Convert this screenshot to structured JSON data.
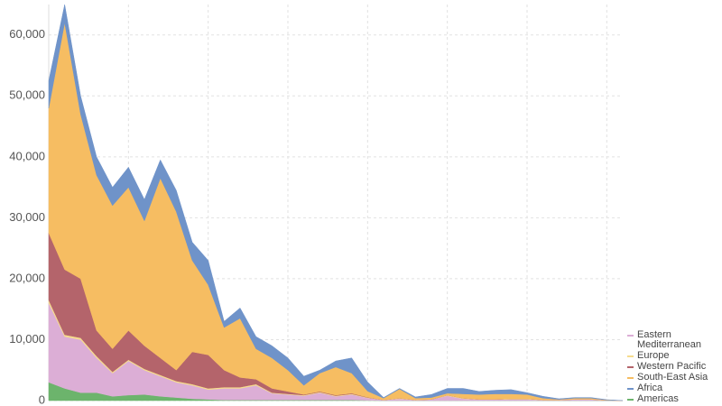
{
  "chart_data": {
    "type": "stacked-area",
    "categories": [
      null,
      null,
      null,
      null,
      null,
      null,
      null,
      null,
      null,
      null,
      null,
      null,
      null,
      null,
      null,
      null,
      null,
      null,
      null,
      null,
      null,
      null,
      null,
      null,
      null,
      null,
      null,
      null,
      null,
      null,
      null,
      null,
      null,
      null,
      null,
      null,
      null
    ],
    "series": [
      {
        "name": "Eastern Mediterranean",
        "color": "#dcaed6",
        "values": [
          13000,
          8500,
          8700,
          5700,
          3800,
          5600,
          4000,
          3300,
          2500,
          2200,
          1600,
          1900,
          1900,
          2400,
          1100,
          900,
          700,
          1200,
          600,
          900,
          400,
          100,
          300,
          100,
          200,
          800,
          300,
          200,
          200,
          200,
          200,
          100,
          100,
          200,
          200,
          50,
          0
        ]
      },
      {
        "name": "Europe",
        "color": "#f6dc8e",
        "values": [
          500,
          300,
          300,
          300,
          200,
          200,
          200,
          200,
          200,
          200,
          200,
          200,
          200,
          200,
          100,
          100,
          100,
          100,
          100,
          100,
          50,
          0,
          100,
          0,
          0,
          100,
          100,
          0,
          0,
          100,
          100,
          0,
          0,
          0,
          0,
          0,
          0
        ]
      },
      {
        "name": "Western Pacific",
        "color": "#b4646b",
        "values": [
          11000,
          10700,
          9700,
          4200,
          3800,
          4800,
          3800,
          2800,
          1800,
          5300,
          5500,
          2800,
          1600,
          800,
          700,
          400,
          100,
          100,
          100,
          100,
          50,
          0,
          0,
          0,
          0,
          0,
          0,
          0,
          0,
          0,
          0,
          0,
          0,
          0,
          0,
          0,
          0
        ]
      },
      {
        "name": "South-East Asia",
        "color": "#f6bd62",
        "values": [
          20500,
          40500,
          27000,
          25500,
          23500,
          23500,
          20500,
          29500,
          26000,
          15000,
          11500,
          7000,
          9700,
          5000,
          5000,
          3500,
          1500,
          3000,
          4600,
          3300,
          1000,
          300,
          1500,
          300,
          300,
          300,
          700,
          800,
          900,
          800,
          700,
          300,
          100,
          200,
          200,
          50,
          0
        ]
      },
      {
        "name": "Africa",
        "color": "#6f93c9",
        "values": [
          4500,
          3000,
          3000,
          3000,
          3000,
          3300,
          3500,
          3000,
          3500,
          3000,
          4000,
          1000,
          1700,
          2000,
          2000,
          2000,
          1500,
          500,
          1000,
          2500,
          1500,
          100,
          100,
          200,
          500,
          800,
          900,
          500,
          600,
          700,
          300,
          300,
          100,
          100,
          100,
          50,
          0
        ]
      },
      {
        "name": "Americas",
        "color": "#6cb46c",
        "values": [
          3000,
          2000,
          1300,
          1300,
          700,
          900,
          1000,
          700,
          500,
          300,
          200,
          100,
          100,
          100,
          100,
          100,
          100,
          100,
          100,
          100,
          50,
          0,
          0,
          0,
          0,
          0,
          0,
          0,
          0,
          0,
          0,
          0,
          0,
          0,
          0,
          0,
          0
        ]
      }
    ],
    "ylim": [
      0,
      65000
    ],
    "yticks": [
      0,
      {
        "value": 10000,
        "label": "10,000"
      },
      {
        "value": 20000,
        "label": "20,000"
      },
      {
        "value": 30000,
        "label": "30,000"
      },
      {
        "value": 40000,
        "label": "40,000"
      },
      {
        "value": 50000,
        "label": "50,000"
      },
      {
        "value": 60000,
        "label": "60,000"
      }
    ],
    "grid": true
  }
}
